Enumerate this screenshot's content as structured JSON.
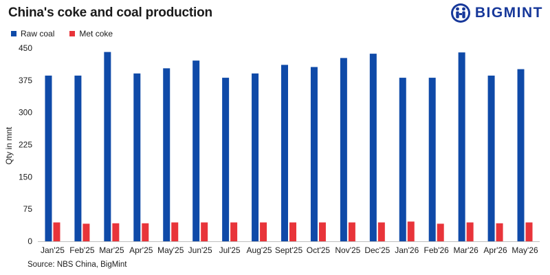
{
  "header": {
    "title": "China's coke and coal production",
    "logo_text": "BIGMINT"
  },
  "source": "Source: NBS China, BigMint",
  "colors": {
    "raw_coal": "#0f4aa8",
    "met_coke": "#e8343a",
    "brand": "#17389a"
  },
  "chart_data": {
    "type": "bar",
    "title": "China's coke and coal production",
    "xlabel": "",
    "ylabel": "Qty in mnt",
    "ylim": [
      0,
      450
    ],
    "yticks": [
      0,
      75,
      150,
      225,
      300,
      375,
      450
    ],
    "grid": false,
    "legend_position": "top-left",
    "categories": [
      "Jan'25",
      "Feb'25",
      "Mar'25",
      "Apr'25",
      "May'25",
      "Jun'25",
      "Jul'25",
      "Aug'25",
      "Sept'25",
      "Oct'25",
      "Nov'25",
      "Dec'25",
      "Jan'26",
      "Feb'26",
      "Mar'26",
      "Apr'26",
      "May'26"
    ],
    "series": [
      {
        "name": "Raw coal",
        "color": "#0f4aa8",
        "values": [
          386,
          386,
          441,
          391,
          403,
          421,
          381,
          391,
          411,
          406,
          427,
          437,
          381,
          381,
          440,
          386,
          401
        ]
      },
      {
        "name": "Met coke",
        "color": "#e8343a",
        "values": [
          44,
          41,
          42,
          42,
          44,
          44,
          44,
          44,
          44,
          44,
          44,
          44,
          46,
          41,
          44,
          42,
          44
        ]
      }
    ]
  }
}
